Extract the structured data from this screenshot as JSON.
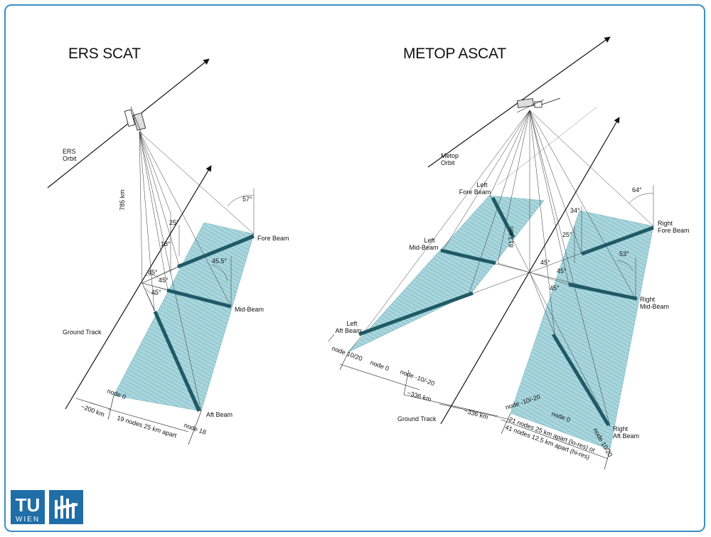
{
  "titles": {
    "left": "ERS SCAT",
    "right": "METOP ASCAT"
  },
  "ers": {
    "orbit_line1": "ERS",
    "orbit_line2": "Orbit",
    "altitude": "785 km",
    "angle_fore": "57°",
    "angle_25": "25°",
    "angle_18": "18°",
    "angle_mid": "45.5°",
    "angle_45": "45°",
    "fore_beam": "Fore Beam",
    "mid_beam": "Mid-Beam",
    "aft_beam": "Aft Beam",
    "ground_track": "Ground Track",
    "node_start": "node 0",
    "node_end": "node 18",
    "offset": "~200 km",
    "nodes": "19 nodes 25 km apart"
  },
  "metop": {
    "orbit_line1": "Metop",
    "orbit_line2": "Orbit",
    "altitude": "817 km",
    "left_fore_1": "Left",
    "left_fore_2": "Fore Beam",
    "left_mid_1": "Left",
    "left_mid_2": "Mid-Beam",
    "left_aft_1": "Left",
    "left_aft_2": "Aft Beam",
    "right_fore_1": "Right",
    "right_fore_2": "Fore Beam",
    "right_mid_1": "Right",
    "right_mid_2": "Mid-Beam",
    "right_aft_1": "Right",
    "right_aft_2": "Aft Beam",
    "angle_64": "64°",
    "angle_34": "34°",
    "angle_25": "25°",
    "angle_53": "53°",
    "angle_45": "45°",
    "ground_track": "Ground Track",
    "node_left": "node 10/20",
    "node_zero": "node 0",
    "node_mid": "node -10/-20",
    "offset": "~336 km",
    "nodes_lores": "21 nodes 25 km apart (lo-res) or",
    "nodes_hires": "41 nodes 12.5 km apart (hi-res)"
  },
  "logo": {
    "letters": "TU",
    "text": "WIEN"
  },
  "colors": {
    "frame": "#3a8fc4",
    "swath": "#a9d6dd",
    "beam": "#1f5a66",
    "logo": "#1f6ea8"
  }
}
